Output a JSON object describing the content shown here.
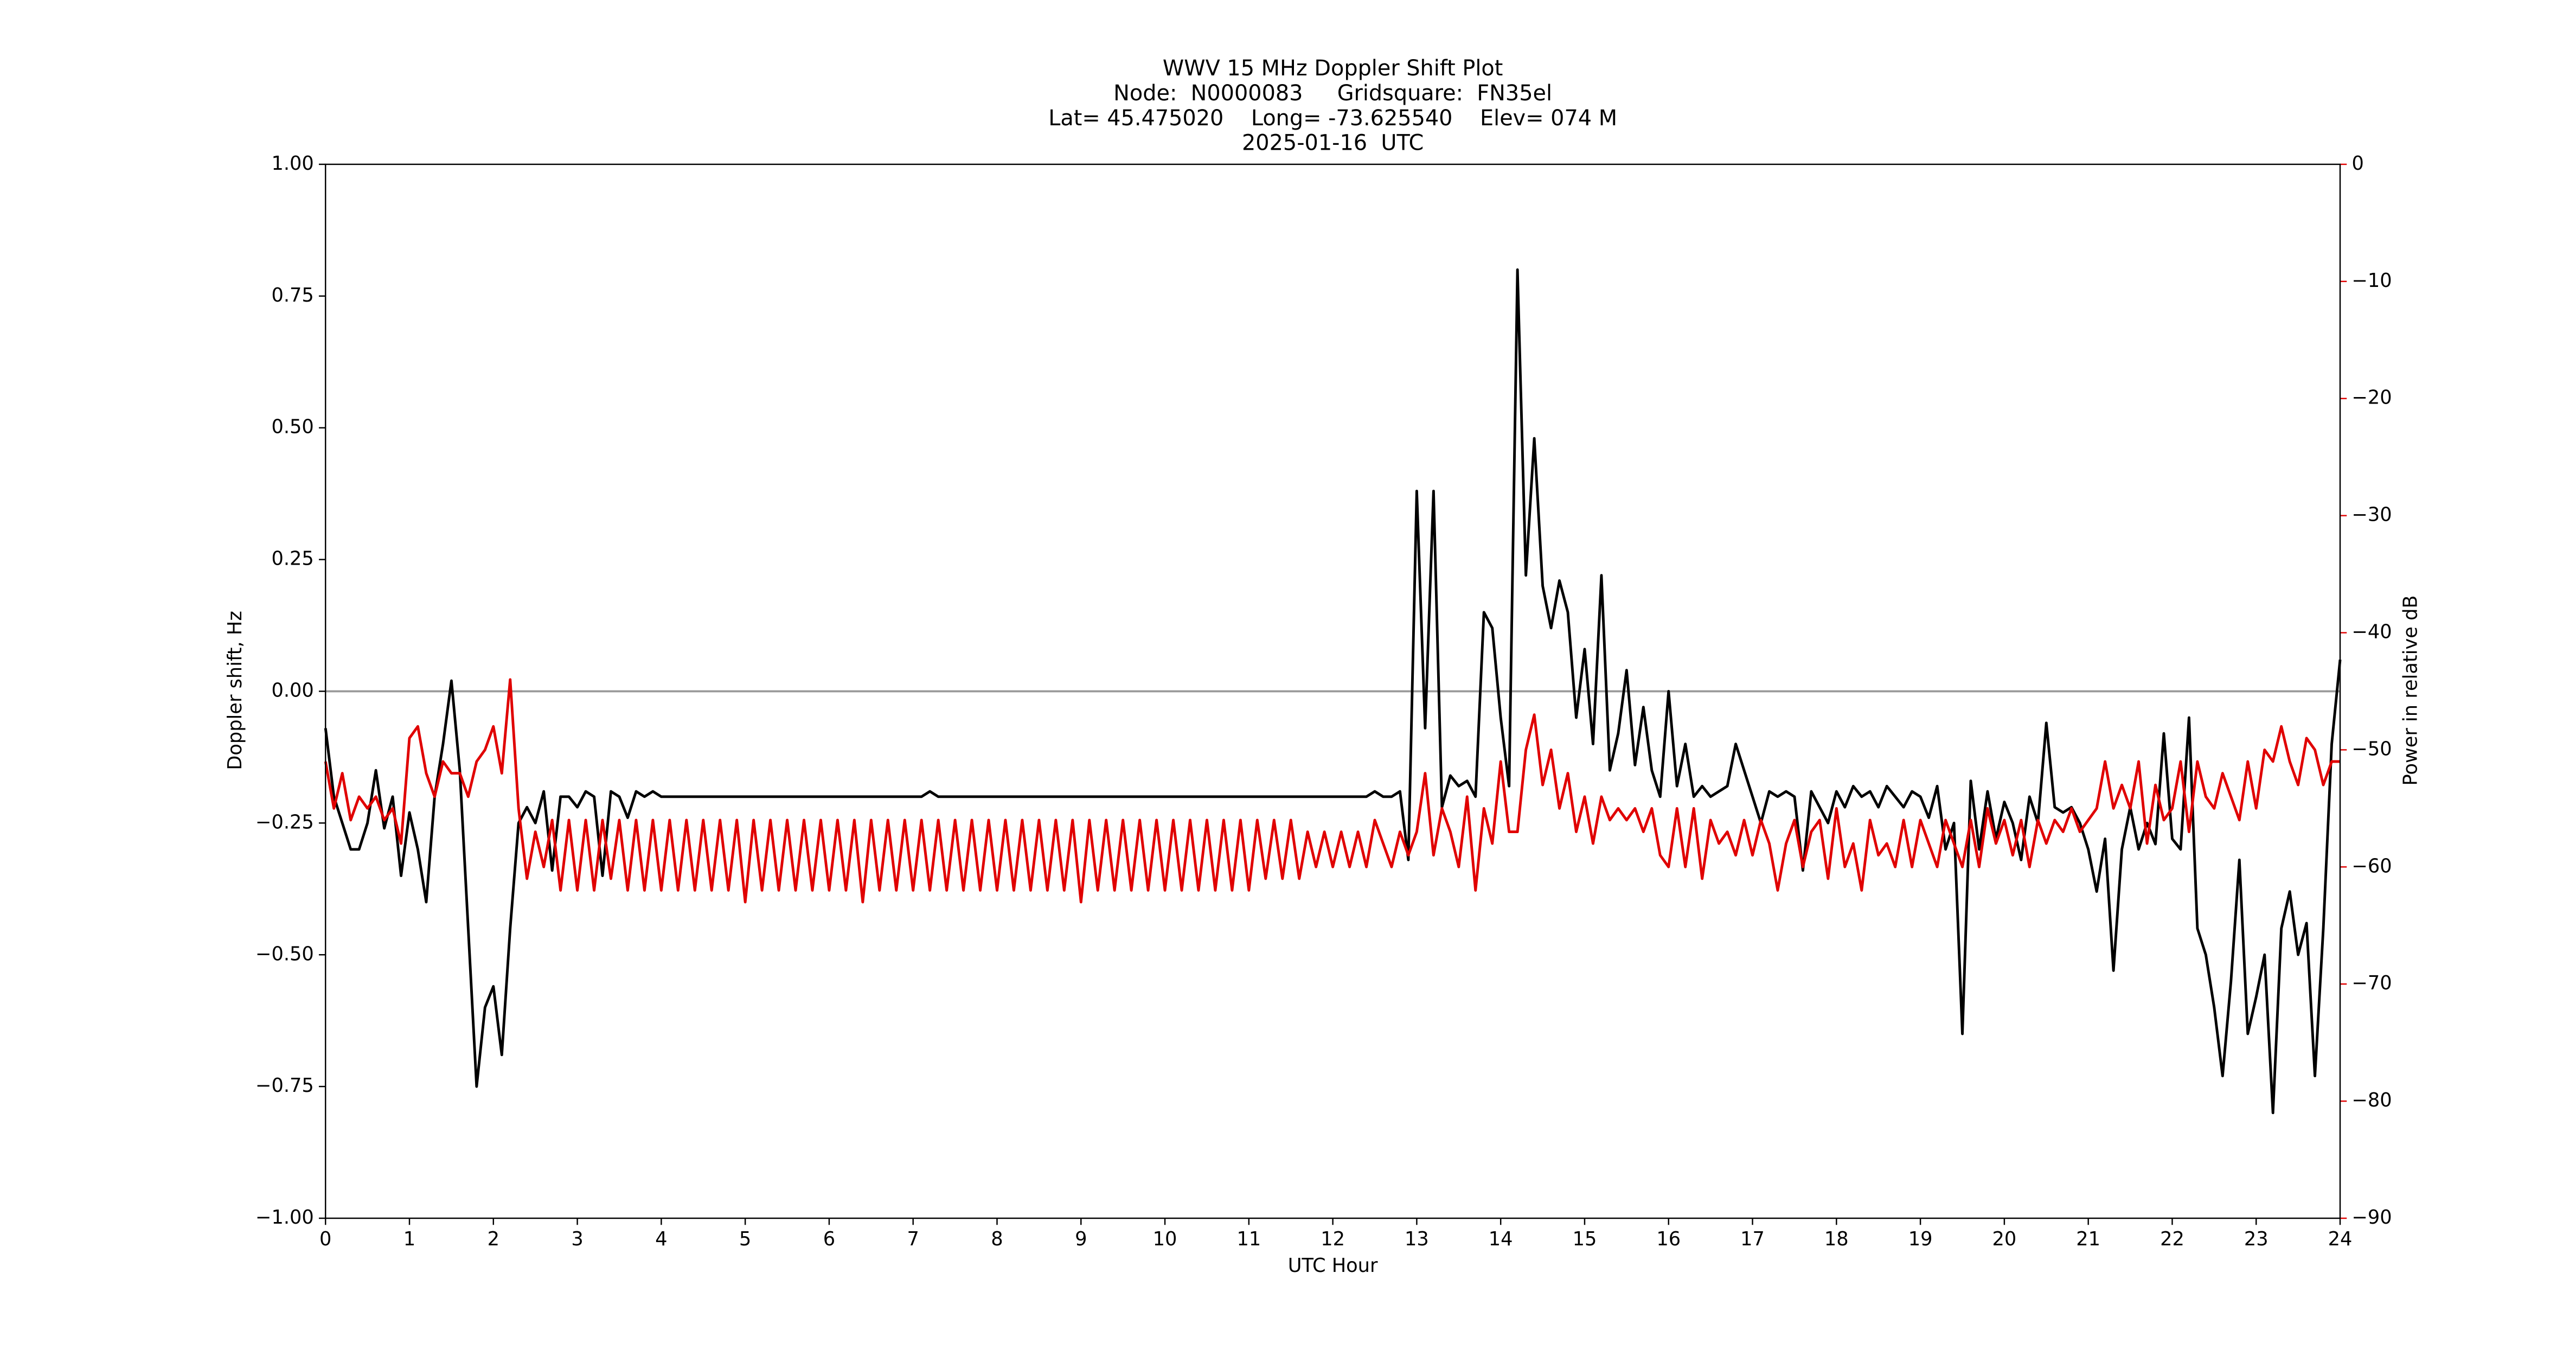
{
  "chart_data": {
    "type": "line",
    "title": [
      "WWV 15 MHz Doppler Shift Plot",
      "Node:  N0000083     Gridsquare:  FN35el",
      "Lat= 45.475020    Long= -73.625540    Elev= 074 M",
      "2025-01-16  UTC"
    ],
    "xlabel": "UTC Hour",
    "ylabel": "Doppler shift, Hz",
    "y2label": "Power in relative dB",
    "y2label_color": "#e00000",
    "xlim": [
      0,
      24
    ],
    "xticks": [
      0,
      1,
      2,
      3,
      4,
      5,
      6,
      7,
      8,
      9,
      10,
      11,
      12,
      13,
      14,
      15,
      16,
      17,
      18,
      19,
      20,
      21,
      22,
      23,
      24
    ],
    "ylim": [
      -1,
      1
    ],
    "yticks": [
      {
        "value": -1,
        "label": "−1.00"
      },
      {
        "value": -0.75,
        "label": "−0.75"
      },
      {
        "value": -0.5,
        "label": "−0.50"
      },
      {
        "value": -0.25,
        "label": "−0.25"
      },
      {
        "value": 0,
        "label": "0.00"
      },
      {
        "value": 0.25,
        "label": "0.25"
      },
      {
        "value": 0.5,
        "label": "0.50"
      },
      {
        "value": 0.75,
        "label": "0.75"
      },
      {
        "value": 1,
        "label": "1.00"
      }
    ],
    "y2lim": [
      -90,
      0
    ],
    "y2ticks": [
      {
        "value": -90,
        "label": "−90"
      },
      {
        "value": -80,
        "label": "−80"
      },
      {
        "value": -70,
        "label": "−70"
      },
      {
        "value": -60,
        "label": "−60"
      },
      {
        "value": -50,
        "label": "−50"
      },
      {
        "value": -40,
        "label": "−40"
      },
      {
        "value": -30,
        "label": "−30"
      },
      {
        "value": -20,
        "label": "−20"
      },
      {
        "value": -10,
        "label": "−10"
      },
      0
    ],
    "hline": 0,
    "hline_color": "#999999",
    "x": [
      0,
      0.1,
      0.2,
      0.3,
      0.4,
      0.5,
      0.6,
      0.7,
      0.8,
      0.9,
      1,
      1.1,
      1.2,
      1.3,
      1.4,
      1.5,
      1.6,
      1.7,
      1.8,
      1.9,
      2,
      2.1,
      2.2,
      2.3,
      2.4,
      2.5,
      2.6,
      2.7,
      2.8,
      2.9,
      3,
      3.1,
      3.2,
      3.3,
      3.4,
      3.5,
      3.6,
      3.7,
      3.8,
      3.9,
      4,
      4.1,
      4.2,
      4.3,
      4.4,
      4.5,
      4.6,
      4.7,
      4.8,
      4.9,
      5,
      5.1,
      5.2,
      5.3,
      5.4,
      5.5,
      5.6,
      5.7,
      5.8,
      5.9,
      6,
      6.1,
      6.2,
      6.3,
      6.4,
      6.5,
      6.6,
      6.7,
      6.8,
      6.9,
      7,
      7.1,
      7.2,
      7.3,
      7.4,
      7.5,
      7.6,
      7.7,
      7.8,
      7.9,
      8,
      8.1,
      8.2,
      8.3,
      8.4,
      8.5,
      8.6,
      8.7,
      8.8,
      8.9,
      9,
      9.1,
      9.2,
      9.3,
      9.4,
      9.5,
      9.6,
      9.7,
      9.8,
      9.9,
      10,
      10.1,
      10.2,
      10.3,
      10.4,
      10.5,
      10.6,
      10.7,
      10.8,
      10.9,
      11,
      11.1,
      11.2,
      11.3,
      11.4,
      11.5,
      11.6,
      11.7,
      11.8,
      11.9,
      12,
      12.1,
      12.2,
      12.3,
      12.4,
      12.5,
      12.6,
      12.7,
      12.8,
      12.9,
      13,
      13.1,
      13.2,
      13.3,
      13.4,
      13.5,
      13.6,
      13.7,
      13.8,
      13.9,
      14,
      14.1,
      14.2,
      14.3,
      14.4,
      14.5,
      14.6,
      14.7,
      14.8,
      14.9,
      15,
      15.1,
      15.2,
      15.3,
      15.4,
      15.5,
      15.6,
      15.7,
      15.8,
      15.9,
      16,
      16.1,
      16.2,
      16.3,
      16.4,
      16.5,
      16.6,
      16.7,
      16.8,
      16.9,
      17,
      17.1,
      17.2,
      17.3,
      17.4,
      17.5,
      17.6,
      17.7,
      17.8,
      17.9,
      18,
      18.1,
      18.2,
      18.3,
      18.4,
      18.5,
      18.6,
      18.7,
      18.8,
      18.9,
      19,
      19.1,
      19.2,
      19.3,
      19.4,
      19.5,
      19.6,
      19.7,
      19.8,
      19.9,
      20,
      20.1,
      20.2,
      20.3,
      20.4,
      20.5,
      20.6,
      20.7,
      20.8,
      20.9,
      21,
      21.1,
      21.2,
      21.3,
      21.4,
      21.5,
      21.6,
      21.7,
      21.8,
      21.9,
      22,
      22.1,
      22.2,
      22.3,
      22.4,
      22.5,
      22.6,
      22.7,
      22.8,
      22.9,
      23,
      23.1,
      23.2,
      23.3,
      23.4,
      23.5,
      23.6,
      23.7,
      23.8,
      23.9,
      24
    ],
    "series": [
      {
        "color": "#000000",
        "values": [
          -0.07,
          -0.2,
          -0.25,
          -0.3,
          -0.3,
          -0.25,
          -0.15,
          -0.26,
          -0.2,
          -0.35,
          -0.23,
          -0.3,
          -0.4,
          -0.2,
          -0.1,
          0.02,
          -0.15,
          -0.45,
          -0.75,
          -0.6,
          -0.56,
          -0.69,
          -0.45,
          -0.25,
          -0.22,
          -0.25,
          -0.19,
          -0.34,
          -0.2,
          -0.2,
          -0.22,
          -0.19,
          -0.2,
          -0.35,
          -0.19,
          -0.2,
          -0.24,
          -0.19,
          -0.2,
          -0.19,
          -0.2,
          -0.2,
          -0.2,
          -0.2,
          -0.2,
          -0.2,
          -0.2,
          -0.2,
          -0.2,
          -0.2,
          -0.2,
          -0.2,
          -0.2,
          -0.2,
          -0.2,
          -0.2,
          -0.2,
          -0.2,
          -0.2,
          -0.2,
          -0.2,
          -0.2,
          -0.2,
          -0.2,
          -0.2,
          -0.2,
          -0.2,
          -0.2,
          -0.2,
          -0.2,
          -0.2,
          -0.2,
          -0.19,
          -0.2,
          -0.2,
          -0.2,
          -0.2,
          -0.2,
          -0.2,
          -0.2,
          -0.2,
          -0.2,
          -0.2,
          -0.2,
          -0.2,
          -0.2,
          -0.2,
          -0.2,
          -0.2,
          -0.2,
          -0.2,
          -0.2,
          -0.2,
          -0.2,
          -0.2,
          -0.2,
          -0.2,
          -0.2,
          -0.2,
          -0.2,
          -0.2,
          -0.2,
          -0.2,
          -0.2,
          -0.2,
          -0.2,
          -0.2,
          -0.2,
          -0.2,
          -0.2,
          -0.2,
          -0.2,
          -0.2,
          -0.2,
          -0.2,
          -0.2,
          -0.2,
          -0.2,
          -0.2,
          -0.2,
          -0.2,
          -0.2,
          -0.2,
          -0.2,
          -0.2,
          -0.19,
          -0.2,
          -0.2,
          -0.19,
          -0.32,
          0.38,
          -0.07,
          0.38,
          -0.22,
          -0.16,
          -0.18,
          -0.17,
          -0.2,
          0.15,
          0.12,
          -0.05,
          -0.18,
          0.8,
          0.22,
          0.48,
          0.2,
          0.12,
          0.21,
          0.15,
          -0.05,
          0.08,
          -0.1,
          0.22,
          -0.15,
          -0.08,
          0.04,
          -0.14,
          -0.03,
          -0.15,
          -0.2,
          0,
          -0.18,
          -0.1,
          -0.2,
          -0.18,
          -0.2,
          -0.19,
          -0.18,
          -0.1,
          -0.15,
          -0.2,
          -0.25,
          -0.19,
          -0.2,
          -0.19,
          -0.2,
          -0.34,
          -0.19,
          -0.22,
          -0.25,
          -0.19,
          -0.22,
          -0.18,
          -0.2,
          -0.19,
          -0.22,
          -0.18,
          -0.2,
          -0.22,
          -0.19,
          -0.2,
          -0.24,
          -0.18,
          -0.3,
          -0.25,
          -0.65,
          -0.17,
          -0.3,
          -0.19,
          -0.28,
          -0.21,
          -0.25,
          -0.32,
          -0.2,
          -0.25,
          -0.06,
          -0.22,
          -0.23,
          -0.22,
          -0.25,
          -0.3,
          -0.38,
          -0.28,
          -0.53,
          -0.3,
          -0.22,
          -0.3,
          -0.25,
          -0.29,
          -0.08,
          -0.28,
          -0.3,
          -0.05,
          -0.45,
          -0.5,
          -0.6,
          -0.73,
          -0.55,
          -0.32,
          -0.65,
          -0.58,
          -0.5,
          -0.8,
          -0.45,
          -0.38,
          -0.5,
          -0.44,
          -0.73,
          -0.45,
          -0.1,
          0.06
        ]
      },
      {
        "color": "#e00000",
        "axis": "y2",
        "values": [
          -51,
          -55,
          -52,
          -56,
          -54,
          -55,
          -54,
          -56,
          -55,
          -58,
          -49,
          -48,
          -52,
          -54,
          -51,
          -52,
          -52,
          -54,
          -51,
          -50,
          -48,
          -52,
          -44,
          -55,
          -61,
          -57,
          -60,
          -56,
          -62,
          -56,
          -62,
          -56,
          -62,
          -56,
          -61,
          -56,
          -62,
          -56,
          -62,
          -56,
          -62,
          -56,
          -62,
          -56,
          -62,
          -56,
          -62,
          -56,
          -62,
          -56,
          -63,
          -56,
          -62,
          -56,
          -62,
          -56,
          -62,
          -56,
          -62,
          -56,
          -62,
          -56,
          -62,
          -56,
          -63,
          -56,
          -62,
          -56,
          -62,
          -56,
          -62,
          -56,
          -62,
          -56,
          -62,
          -56,
          -62,
          -56,
          -62,
          -56,
          -62,
          -56,
          -62,
          -56,
          -62,
          -56,
          -62,
          -56,
          -62,
          -56,
          -63,
          -56,
          -62,
          -56,
          -62,
          -56,
          -62,
          -56,
          -62,
          -56,
          -62,
          -56,
          -62,
          -56,
          -62,
          -56,
          -62,
          -56,
          -62,
          -56,
          -62,
          -56,
          -61,
          -56,
          -61,
          -56,
          -61,
          -57,
          -60,
          -57,
          -60,
          -57,
          -60,
          -57,
          -60,
          -56,
          -58,
          -60,
          -57,
          -59,
          -57,
          -52,
          -59,
          -55,
          -57,
          -60,
          -54,
          -62,
          -55,
          -58,
          -51,
          -57,
          -57,
          -50,
          -47,
          -53,
          -50,
          -55,
          -52,
          -57,
          -54,
          -58,
          -54,
          -56,
          -55,
          -56,
          -55,
          -57,
          -55,
          -59,
          -60,
          -55,
          -60,
          -55,
          -61,
          -56,
          -58,
          -57,
          -59,
          -56,
          -59,
          -56,
          -58,
          -62,
          -58,
          -56,
          -60,
          -57,
          -56,
          -61,
          -55,
          -60,
          -58,
          -62,
          -56,
          -59,
          -58,
          -60,
          -56,
          -60,
          -56,
          -58,
          -60,
          -56,
          -58,
          -60,
          -56,
          -60,
          -55,
          -58,
          -56,
          -59,
          -56,
          -60,
          -56,
          -58,
          -56,
          -57,
          -55,
          -57,
          -56,
          -55,
          -51,
          -55,
          -53,
          -55,
          -51,
          -58,
          -53,
          -56,
          -55,
          -51,
          -57,
          -51,
          -54,
          -55,
          -52,
          -54,
          -56,
          -51,
          -55,
          -50,
          -51,
          -48,
          -51,
          -53,
          -49,
          -50,
          -53,
          -51,
          -51
        ]
      }
    ]
  }
}
